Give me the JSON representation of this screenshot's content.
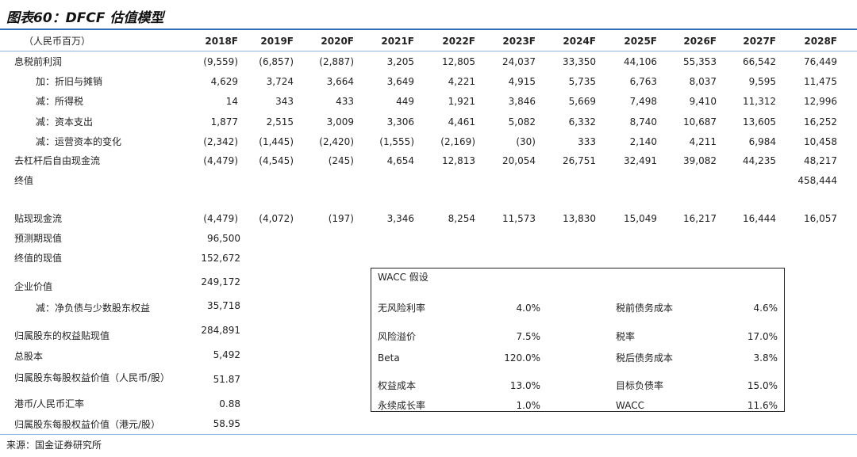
{
  "title": "图表60：DFCF 估值模型",
  "table": {
    "header": [
      "（人民币百万）",
      "2018F",
      "2019F",
      "2020F",
      "2021F",
      "2022F",
      "2023F",
      "2024F",
      "2025F",
      "2026F",
      "2027F",
      "2028F"
    ],
    "rows": [
      [
        "息税前利润",
        "(9,559)",
        "(6,857)",
        "(2,887)",
        "3,205",
        "12,805",
        "24,037",
        "33,350",
        "44,106",
        "55,353",
        "66,542",
        "76,449"
      ],
      [
        "加：折旧与摊销",
        "4,629",
        "3,724",
        "3,664",
        "3,649",
        "4,221",
        "4,915",
        "5,735",
        "6,763",
        "8,037",
        "9,595",
        "11,475"
      ],
      [
        "减：所得税",
        "14",
        "343",
        "433",
        "449",
        "1,921",
        "3,846",
        "5,669",
        "7,498",
        "9,410",
        "11,312",
        "12,996"
      ],
      [
        "减：资本支出",
        "1,877",
        "2,515",
        "3,009",
        "3,306",
        "4,461",
        "5,082",
        "6,332",
        "8,740",
        "10,687",
        "13,605",
        "16,252"
      ],
      [
        "减：运营资本的变化",
        "(2,342)",
        "(1,445)",
        "(2,420)",
        "(1,555)",
        "(2,169)",
        "(30)",
        "333",
        "2,140",
        "4,211",
        "6,984",
        "10,458"
      ],
      [
        "去杠杆后自由现金流",
        "(4,479)",
        "(4,545)",
        "(245)",
        "4,654",
        "12,813",
        "20,054",
        "26,751",
        "32,491",
        "39,082",
        "44,235",
        "48,217"
      ],
      [
        "终值",
        null,
        null,
        null,
        null,
        null,
        null,
        null,
        null,
        null,
        null,
        "458,444"
      ],
      [
        "贴现现金流",
        "(4,479)",
        "(4,072)",
        "(197)",
        "3,346",
        "8,254",
        "11,573",
        "13,830",
        "15,049",
        "16,217",
        "16,444",
        "16,057"
      ]
    ]
  },
  "summary": [
    [
      "预测期现值",
      "96,500"
    ],
    [
      "终值的现值",
      "152,672"
    ],
    [
      "企业价值",
      "249,172"
    ],
    [
      "减：净负债与少数股东权益",
      "35,718"
    ],
    [
      "归属股东的权益贴现值",
      "284,891"
    ],
    [
      "总股本",
      "5,492"
    ],
    [
      "归属股东每股权益价值（人民币/股）",
      "51.87"
    ],
    [
      "港币/人民币汇率",
      "0.88"
    ],
    [
      "归属股东每股权益价值（港元/股）",
      "58.95"
    ]
  ],
  "wacc": {
    "title": "WACC 假设",
    "rows": [
      [
        "无风险利率",
        "4.0%",
        "税前债务成本",
        "4.6%"
      ],
      [
        "风险溢价",
        "7.5%",
        "税率",
        "17.0%"
      ],
      [
        "Beta",
        "120.0%",
        "税后债务成本",
        "3.8%"
      ],
      [
        "权益成本",
        "13.0%",
        "目标负债率",
        "15.0%"
      ],
      [
        "永续成长率",
        "1.0%",
        "WACC",
        "11.6%"
      ]
    ]
  },
  "source": "来源：国金证券研究所"
}
